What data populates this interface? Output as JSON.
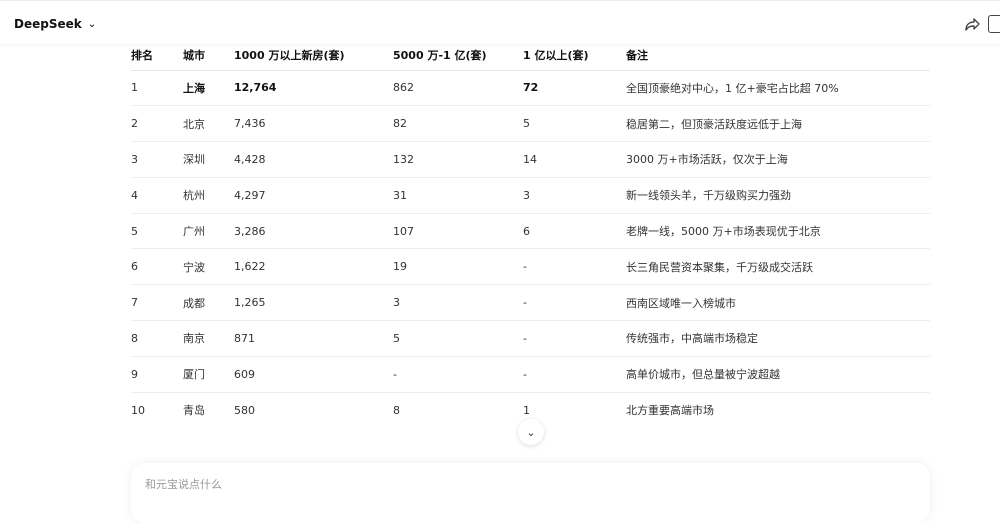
{
  "header": {
    "title": "DeepSeek"
  },
  "table": {
    "columns": [
      "排名",
      "城市",
      "1000 万以上新房(套)",
      "5000 万-1 亿(套)",
      "1 亿以上(套)",
      "备注"
    ],
    "rows": [
      [
        "1",
        "上海",
        "12,764",
        "862",
        "72",
        "全国顶豪绝对中心，1 亿+豪宅占比超 70%"
      ],
      [
        "2",
        "北京",
        "7,436",
        "82",
        "5",
        "稳居第二，但顶豪活跃度远低于上海"
      ],
      [
        "3",
        "深圳",
        "4,428",
        "132",
        "14",
        "3000 万+市场活跃，仅次于上海"
      ],
      [
        "4",
        "杭州",
        "4,297",
        "31",
        "3",
        "新一线领头羊，千万级购买力强劲"
      ],
      [
        "5",
        "广州",
        "3,286",
        "107",
        "6",
        "老牌一线，5000 万+市场表现优于北京"
      ],
      [
        "6",
        "宁波",
        "1,622",
        "19",
        "-",
        "长三角民营资本聚集，千万级成交活跃"
      ],
      [
        "7",
        "成都",
        "1,265",
        "3",
        "-",
        "西南区域唯一入榜城市"
      ],
      [
        "8",
        "南京",
        "871",
        "5",
        "-",
        "传统强市，中高端市场稳定"
      ],
      [
        "9",
        "厦门",
        "609",
        "-",
        "-",
        "高单价城市，但总量被宁波超越"
      ],
      [
        "10",
        "青岛",
        "580",
        "8",
        "1",
        "北方重要高端市场"
      ]
    ]
  },
  "input": {
    "placeholder": "和元宝说点什么"
  }
}
